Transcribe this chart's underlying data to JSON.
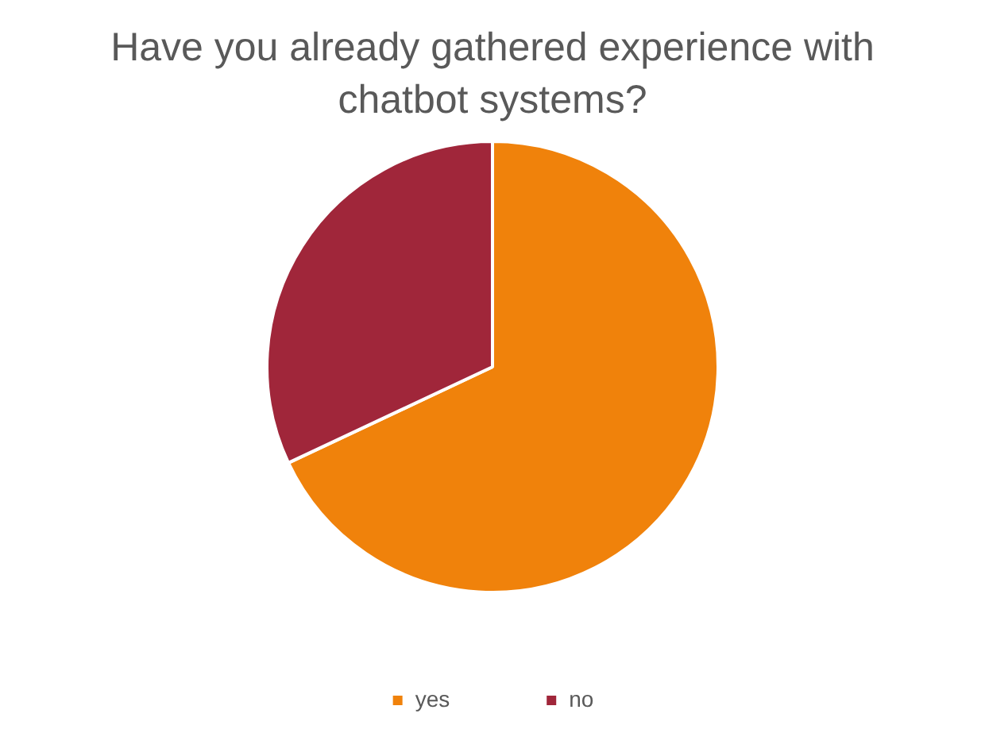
{
  "chart_data": {
    "type": "pie",
    "title": "Have you already gathered experience with chatbot systems?",
    "categories": [
      "yes",
      "no"
    ],
    "values": [
      68,
      32
    ],
    "colors": [
      "#f0820b",
      "#a0263a"
    ],
    "legend": "bottom"
  }
}
